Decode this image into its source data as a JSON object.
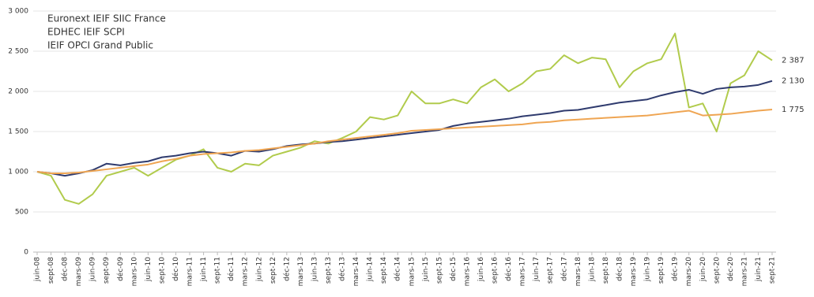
{
  "chart_data": {
    "type": "line",
    "categories": [
      "juin-08",
      "sept-08",
      "déc-08",
      "mars-09",
      "juin-09",
      "sept-09",
      "déc-09",
      "mars-10",
      "juin-10",
      "sept-10",
      "déc-10",
      "mars-11",
      "juin-11",
      "sept-11",
      "déc-11",
      "mars-12",
      "juin-12",
      "sept-12",
      "déc-12",
      "mars-13",
      "juin-13",
      "sept-13",
      "déc-13",
      "mars-14",
      "juin-14",
      "sept-14",
      "déc-14",
      "mars-15",
      "juin-15",
      "sept-15",
      "déc-15",
      "mars-16",
      "juin-16",
      "sept-16",
      "déc-16",
      "mars-17",
      "juin-17",
      "sept-17",
      "déc-17",
      "mars-18",
      "juin-18",
      "sept-18",
      "déc-18",
      "mars-19",
      "juin-19",
      "sept-19",
      "déc-19",
      "mars-20",
      "juin-20",
      "sept-20",
      "déc-20",
      "mars-21",
      "juin-21",
      "sept-21"
    ],
    "series": [
      {
        "name": "Euronext IEIF SIIC France",
        "color": "#b1cb4c",
        "end_label": "2 387",
        "values": [
          1000,
          950,
          650,
          600,
          720,
          950,
          1000,
          1050,
          950,
          1050,
          1150,
          1200,
          1280,
          1050,
          1000,
          1100,
          1080,
          1200,
          1250,
          1300,
          1380,
          1350,
          1420,
          1500,
          1680,
          1650,
          1700,
          2000,
          1850,
          1850,
          1900,
          1850,
          2050,
          2150,
          2000,
          2100,
          2250,
          2280,
          2450,
          2350,
          2420,
          2400,
          2050,
          2250,
          2350,
          2400,
          2720,
          1800,
          1850,
          1500,
          2100,
          2200,
          2500,
          2387
        ]
      },
      {
        "name": "EDHEC IEIF SCPI",
        "color": "#2f3b6e",
        "end_label": "2 130",
        "values": [
          1000,
          980,
          950,
          980,
          1020,
          1100,
          1080,
          1110,
          1130,
          1180,
          1200,
          1230,
          1250,
          1230,
          1200,
          1260,
          1250,
          1280,
          1320,
          1340,
          1350,
          1370,
          1380,
          1400,
          1420,
          1440,
          1460,
          1480,
          1500,
          1520,
          1570,
          1600,
          1620,
          1640,
          1660,
          1690,
          1710,
          1730,
          1760,
          1770,
          1800,
          1830,
          1860,
          1880,
          1900,
          1950,
          1990,
          2020,
          1970,
          2030,
          2050,
          2060,
          2080,
          2130
        ]
      },
      {
        "name": "IEIF OPCI Grand Public",
        "color": "#efa552",
        "end_label": "1 775",
        "values": [
          1000,
          980,
          980,
          990,
          1010,
          1030,
          1050,
          1070,
          1090,
          1130,
          1160,
          1200,
          1220,
          1230,
          1240,
          1260,
          1270,
          1290,
          1310,
          1330,
          1350,
          1380,
          1400,
          1420,
          1440,
          1460,
          1480,
          1510,
          1520,
          1530,
          1540,
          1550,
          1560,
          1570,
          1580,
          1590,
          1610,
          1620,
          1640,
          1650,
          1660,
          1670,
          1680,
          1690,
          1700,
          1720,
          1740,
          1760,
          1700,
          1710,
          1720,
          1740,
          1760,
          1775
        ]
      }
    ],
    "ylim": [
      0,
      3000
    ],
    "yticks": [
      0,
      500,
      {
        "value": 1000,
        "label": "1 000"
      },
      {
        "value": 1500,
        "label": "1 500"
      },
      {
        "value": 2000,
        "label": "2 000"
      },
      {
        "value": 2500,
        "label": "2 500"
      },
      {
        "value": 3000,
        "label": "3 000"
      }
    ],
    "grid": true
  }
}
